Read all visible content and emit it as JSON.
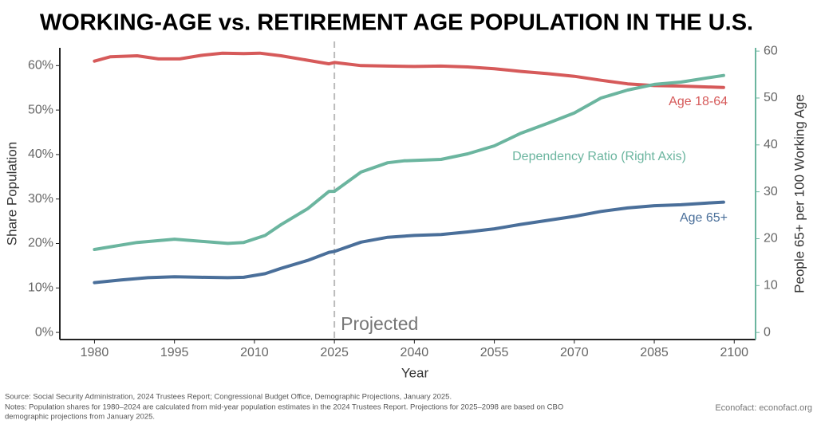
{
  "chart_data": {
    "type": "line",
    "title": "WORKING-AGE vs. RETIREMENT AGE POPULATION IN THE U.S.",
    "x_label": "Year",
    "y_label": "Share Population",
    "y2_label": "People 65+ per 100 Working Age",
    "annotation": "Projected",
    "projection_start": 2025,
    "xlim": [
      1973.5,
      2104
    ],
    "xticks": [
      1980,
      1995,
      2010,
      2025,
      2040,
      2055,
      2070,
      2085,
      2100
    ],
    "ylim": [
      -1.6,
      64
    ],
    "yticks": [
      {
        "value": 0,
        "label": "0%"
      },
      {
        "value": 10,
        "label": "10%"
      },
      {
        "value": 20,
        "label": "20%"
      },
      {
        "value": 30,
        "label": "30%"
      },
      {
        "value": 40,
        "label": "40%"
      },
      {
        "value": 50,
        "label": "50%"
      },
      {
        "value": 60,
        "label": "60%"
      }
    ],
    "y2lim": [
      -1.5,
      60.7
    ],
    "y2ticks": [
      0,
      10,
      20,
      30,
      40,
      50,
      60
    ],
    "y2_color": "#6bb59f",
    "series": [
      {
        "name": "Age 18-64",
        "color": "#d65a5a",
        "x": [
          1980,
          1983,
          1988,
          1992,
          1996,
          2000,
          2004,
          2008,
          2011,
          2015,
          2020,
          2024,
          2025,
          2030,
          2035,
          2040,
          2045,
          2050,
          2055,
          2060,
          2065,
          2070,
          2075,
          2080,
          2085,
          2090,
          2095,
          2098
        ],
        "values": [
          61,
          62,
          62.2,
          61.5,
          61.5,
          62.3,
          62.8,
          62.7,
          62.8,
          62.2,
          61.2,
          60.4,
          60.7,
          60,
          59.9,
          59.8,
          59.9,
          59.7,
          59.3,
          58.7,
          58.2,
          57.6,
          56.7,
          55.9,
          55.5,
          55.4,
          55.2,
          55.1
        ]
      },
      {
        "name": "Dependency Ratio (Right Axis)",
        "color": "#6bb59f",
        "axis": "y2",
        "x": [
          1980,
          1988,
          1995,
          2005,
          2008,
          2012,
          2015,
          2020,
          2024,
          2025,
          2030,
          2035,
          2038,
          2045,
          2050,
          2055,
          2060,
          2065,
          2070,
          2075,
          2080,
          2085,
          2090,
          2095,
          2098
        ],
        "values": [
          17.7,
          19.2,
          19.9,
          19.0,
          19.2,
          20.7,
          23,
          26.4,
          30.1,
          30.1,
          34.2,
          36.2,
          36.6,
          36.9,
          38.1,
          39.8,
          42.5,
          44.6,
          46.8,
          50,
          51.7,
          52.9,
          53.4,
          54.3,
          54.8
        ]
      },
      {
        "name": "Age 65+",
        "color": "#4a6f9a",
        "x": [
          1980,
          1985,
          1990,
          1995,
          2000,
          2005,
          2008,
          2012,
          2015,
          2020,
          2024,
          2025,
          2030,
          2035,
          2040,
          2045,
          2050,
          2055,
          2060,
          2065,
          2070,
          2075,
          2080,
          2085,
          2090,
          2095,
          2098
        ],
        "values": [
          11.2,
          11.8,
          12.3,
          12.5,
          12.4,
          12.3,
          12.4,
          13.2,
          14.4,
          16.2,
          18,
          18.2,
          20.3,
          21.4,
          21.8,
          22,
          22.6,
          23.3,
          24.3,
          25.2,
          26.1,
          27.2,
          28,
          28.5,
          28.7,
          29.1,
          29.3
        ]
      }
    ],
    "source_notes": [
      "Source: Social Security Administration, 2024 Trustees Report; Congressional Budget Office, Demographic Projections, January 2025.",
      "Notes: Population shares for 1980–2024 are calculated from mid-year population estimates in the 2024 Trustees Report. Projections for 2025–2098 are based on CBO",
      "demographic projections from January 2025."
    ],
    "credit": "Econofact: econofact.org"
  }
}
